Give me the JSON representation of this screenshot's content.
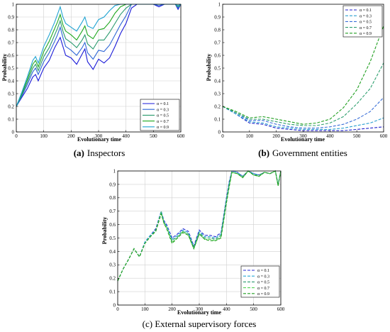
{
  "chart_data": [
    {
      "type": "line",
      "panel": "a",
      "caption_letter": "(a)",
      "caption_text": "Inspectors",
      "xlabel": "Evolutionary time",
      "ylabel": "Probability",
      "xlim": [
        0,
        600
      ],
      "ylim": [
        0,
        1
      ],
      "xticks": [
        "0",
        "100",
        "200",
        "300",
        "400",
        "500",
        "600"
      ],
      "yticks": [
        "0",
        "0.1",
        "0.2",
        "0.3",
        "0.4",
        "0.5",
        "0.6",
        "0.7",
        "0.8",
        "0.9",
        "1"
      ],
      "grid": true,
      "legend_position": "bottom-right",
      "series": [
        {
          "name": "α = 0.1",
          "color": "#1a1ad8",
          "dash": "solid",
          "x": [
            0,
            20,
            40,
            60,
            70,
            80,
            100,
            120,
            140,
            150,
            160,
            170,
            180,
            200,
            220,
            240,
            250,
            260,
            280,
            300,
            320,
            340,
            360,
            380,
            400,
            420,
            440,
            460,
            480,
            500,
            520,
            540,
            560,
            580,
            590,
            600
          ],
          "y": [
            0.2,
            0.27,
            0.34,
            0.43,
            0.45,
            0.4,
            0.5,
            0.56,
            0.66,
            0.7,
            0.74,
            0.67,
            0.6,
            0.58,
            0.53,
            0.61,
            0.65,
            0.55,
            0.49,
            0.57,
            0.54,
            0.58,
            0.67,
            0.77,
            0.85,
            0.97,
            1.0,
            1.0,
            1.0,
            1.0,
            0.98,
            1.0,
            1.0,
            1.0,
            0.96,
            1.0
          ]
        },
        {
          "name": "α = 0.3",
          "color": "#2e66d6",
          "dash": "solid",
          "x": [
            0,
            20,
            40,
            60,
            70,
            80,
            100,
            120,
            140,
            150,
            160,
            170,
            180,
            200,
            220,
            240,
            250,
            260,
            280,
            300,
            320,
            340,
            360,
            380,
            400,
            420,
            440,
            460,
            480,
            500,
            520,
            540,
            560,
            580,
            590,
            600
          ],
          "y": [
            0.2,
            0.28,
            0.37,
            0.47,
            0.5,
            0.45,
            0.55,
            0.62,
            0.71,
            0.76,
            0.82,
            0.74,
            0.67,
            0.64,
            0.6,
            0.66,
            0.7,
            0.62,
            0.57,
            0.64,
            0.63,
            0.68,
            0.76,
            0.84,
            0.91,
            1.0,
            1.0,
            1.0,
            1.0,
            1.0,
            0.99,
            1.0,
            1.0,
            1.0,
            0.97,
            1.0
          ]
        },
        {
          "name": "α = 0.5",
          "color": "#2a9a6e",
          "dash": "solid",
          "x": [
            0,
            20,
            40,
            60,
            70,
            80,
            100,
            120,
            140,
            150,
            160,
            170,
            180,
            200,
            220,
            240,
            250,
            260,
            280,
            300,
            320,
            340,
            360,
            380,
            400,
            420,
            440,
            460,
            480,
            500,
            520,
            540,
            560,
            580,
            590,
            600
          ],
          "y": [
            0.2,
            0.29,
            0.39,
            0.5,
            0.53,
            0.48,
            0.59,
            0.66,
            0.76,
            0.81,
            0.87,
            0.79,
            0.73,
            0.7,
            0.66,
            0.72,
            0.76,
            0.69,
            0.65,
            0.72,
            0.72,
            0.78,
            0.85,
            0.92,
            0.97,
            1.0,
            1.0,
            1.0,
            1.0,
            1.0,
            1.0,
            1.0,
            1.0,
            1.0,
            0.98,
            1.0
          ]
        },
        {
          "name": "α = 0.7",
          "color": "#1fa81f",
          "dash": "solid",
          "x": [
            0,
            20,
            40,
            60,
            70,
            80,
            100,
            120,
            140,
            150,
            160,
            170,
            180,
            200,
            220,
            240,
            250,
            260,
            280,
            300,
            320,
            340,
            360,
            380,
            400,
            420,
            440,
            460,
            480,
            500,
            520,
            540,
            560,
            580,
            590,
            600
          ],
          "y": [
            0.2,
            0.3,
            0.41,
            0.53,
            0.56,
            0.51,
            0.63,
            0.71,
            0.81,
            0.86,
            0.92,
            0.84,
            0.79,
            0.76,
            0.72,
            0.79,
            0.83,
            0.76,
            0.73,
            0.8,
            0.81,
            0.86,
            0.93,
            0.98,
            1.0,
            1.0,
            1.0,
            1.0,
            1.0,
            1.0,
            1.0,
            1.0,
            1.0,
            1.0,
            0.99,
            1.0
          ]
        },
        {
          "name": "α = 0.9",
          "color": "#1fa3d2",
          "dash": "solid",
          "x": [
            0,
            20,
            40,
            60,
            70,
            80,
            100,
            120,
            140,
            150,
            160,
            170,
            180,
            200,
            220,
            240,
            250,
            260,
            280,
            300,
            320,
            340,
            360,
            380,
            400,
            420,
            440,
            460,
            480,
            500,
            520,
            540,
            560,
            580,
            590,
            600
          ],
          "y": [
            0.2,
            0.31,
            0.43,
            0.56,
            0.59,
            0.54,
            0.67,
            0.76,
            0.86,
            0.92,
            0.98,
            0.9,
            0.85,
            0.82,
            0.79,
            0.86,
            0.9,
            0.83,
            0.81,
            0.88,
            0.9,
            0.95,
            0.99,
            1.0,
            1.0,
            1.0,
            1.0,
            1.0,
            1.0,
            1.0,
            1.0,
            1.0,
            1.0,
            1.0,
            0.99,
            1.0
          ]
        }
      ]
    },
    {
      "type": "line",
      "panel": "b",
      "caption_letter": "(b)",
      "caption_text": "Government entities",
      "xlabel": "Evolutionary time",
      "ylabel": "Probability",
      "xlim": [
        0,
        600
      ],
      "ylim": [
        0,
        1
      ],
      "xticks": [
        "0",
        "100",
        "200",
        "300",
        "400",
        "500",
        "600"
      ],
      "yticks": [
        "0",
        "0.1",
        "0.2",
        "0.3",
        "0.4",
        "0.5",
        "0.6",
        "0.7",
        "0.8",
        "0.9",
        "1"
      ],
      "grid": false,
      "legend_position": "top-right",
      "series": [
        {
          "name": "α = 0.1",
          "color": "#2222cc",
          "dash": "4,2",
          "x": [
            0,
            50,
            100,
            150,
            200,
            250,
            300,
            350,
            400,
            450,
            500,
            550,
            600
          ],
          "y": [
            0.2,
            0.14,
            0.07,
            0.06,
            0.03,
            0.02,
            0.01,
            0.01,
            0.01,
            0.01,
            0.02,
            0.03,
            0.04
          ]
        },
        {
          "name": "α = 0.3",
          "color": "#2aa0d0",
          "dash": "4,2",
          "x": [
            0,
            50,
            100,
            150,
            200,
            250,
            300,
            350,
            400,
            450,
            500,
            550,
            600
          ],
          "y": [
            0.2,
            0.14,
            0.08,
            0.07,
            0.04,
            0.03,
            0.02,
            0.02,
            0.02,
            0.03,
            0.05,
            0.07,
            0.11
          ]
        },
        {
          "name": "α = 0.5",
          "color": "#3a6fd8",
          "dash": "4,2",
          "x": [
            0,
            50,
            100,
            150,
            200,
            250,
            300,
            350,
            400,
            450,
            500,
            550,
            600
          ],
          "y": [
            0.2,
            0.15,
            0.09,
            0.09,
            0.06,
            0.04,
            0.03,
            0.03,
            0.04,
            0.06,
            0.1,
            0.16,
            0.27
          ]
        },
        {
          "name": "α = 0.7",
          "color": "#30a070",
          "dash": "4,2",
          "x": [
            0,
            50,
            100,
            150,
            200,
            250,
            300,
            350,
            400,
            450,
            500,
            550,
            600
          ],
          "y": [
            0.2,
            0.15,
            0.1,
            0.1,
            0.08,
            0.06,
            0.05,
            0.05,
            0.07,
            0.12,
            0.22,
            0.34,
            0.54
          ]
        },
        {
          "name": "α = 0.9",
          "color": "#22a022",
          "dash": "4,2",
          "x": [
            0,
            50,
            100,
            150,
            200,
            250,
            300,
            350,
            400,
            450,
            500,
            550,
            600
          ],
          "y": [
            0.2,
            0.16,
            0.11,
            0.12,
            0.1,
            0.08,
            0.06,
            0.07,
            0.1,
            0.19,
            0.33,
            0.55,
            0.83
          ]
        }
      ]
    },
    {
      "type": "line",
      "panel": "c",
      "caption_letter": "",
      "caption_text": "(c) External supervisory forces",
      "xlabel": "Evolutionary time",
      "ylabel": "Probability",
      "xlim": [
        0,
        600
      ],
      "ylim": [
        0,
        1
      ],
      "xticks": [
        "0",
        "100",
        "200",
        "300",
        "400",
        "500",
        "600"
      ],
      "yticks": [
        "0",
        "0.1",
        "0.2",
        "0.3",
        "0.4",
        "0.5",
        "0.6",
        "0.7",
        "0.8",
        "0.9",
        "1"
      ],
      "grid": true,
      "legend_position": "bottom-right",
      "series": [
        {
          "name": "α = 0.1",
          "color": "#2a2ad6",
          "dash": "4,2",
          "x": [
            0,
            20,
            40,
            60,
            80,
            100,
            120,
            140,
            160,
            170,
            180,
            200,
            220,
            240,
            260,
            280,
            300,
            320,
            340,
            360,
            380,
            400,
            410,
            420,
            440,
            460,
            480,
            500,
            520,
            540,
            560,
            580,
            590,
            600
          ],
          "y": [
            0.18,
            0.27,
            0.34,
            0.42,
            0.36,
            0.47,
            0.52,
            0.57,
            0.7,
            0.63,
            0.6,
            0.5,
            0.53,
            0.57,
            0.55,
            0.44,
            0.56,
            0.52,
            0.52,
            0.51,
            0.54,
            0.8,
            0.92,
            1.0,
            0.99,
            0.96,
            1.0,
            0.98,
            0.97,
            0.99,
            0.98,
            1.0,
            0.9,
            1.0
          ]
        },
        {
          "name": "α = 0.3",
          "color": "#2aa8d6",
          "dash": "4,2",
          "x": [
            0,
            20,
            40,
            60,
            80,
            100,
            120,
            140,
            160,
            170,
            180,
            200,
            220,
            240,
            260,
            280,
            300,
            320,
            340,
            360,
            380,
            400,
            410,
            420,
            440,
            460,
            480,
            500,
            520,
            540,
            560,
            580,
            590,
            600
          ],
          "y": [
            0.18,
            0.27,
            0.34,
            0.42,
            0.36,
            0.47,
            0.52,
            0.56,
            0.7,
            0.62,
            0.59,
            0.49,
            0.52,
            0.56,
            0.54,
            0.43,
            0.55,
            0.51,
            0.51,
            0.5,
            0.53,
            0.79,
            0.91,
            1.0,
            0.99,
            0.96,
            1.0,
            0.98,
            0.97,
            0.99,
            0.98,
            1.0,
            0.9,
            1.0
          ]
        },
        {
          "name": "α = 0.5",
          "color": "#2e9a70",
          "dash": "4,2",
          "x": [
            0,
            20,
            40,
            60,
            80,
            100,
            120,
            140,
            160,
            170,
            180,
            200,
            220,
            240,
            260,
            280,
            300,
            320,
            340,
            360,
            380,
            400,
            410,
            420,
            440,
            460,
            480,
            500,
            520,
            540,
            560,
            580,
            590,
            600
          ],
          "y": [
            0.18,
            0.27,
            0.34,
            0.42,
            0.36,
            0.46,
            0.51,
            0.56,
            0.69,
            0.62,
            0.58,
            0.48,
            0.51,
            0.55,
            0.53,
            0.43,
            0.54,
            0.5,
            0.5,
            0.49,
            0.52,
            0.78,
            0.9,
            0.99,
            0.98,
            0.96,
            1.0,
            0.97,
            0.97,
            0.99,
            0.98,
            1.0,
            0.89,
            1.0
          ]
        },
        {
          "name": "α = 0.7",
          "color": "#55d455",
          "dash": "4,2",
          "x": [
            0,
            20,
            40,
            60,
            80,
            100,
            120,
            140,
            160,
            170,
            180,
            200,
            220,
            240,
            260,
            280,
            300,
            320,
            340,
            360,
            380,
            400,
            410,
            420,
            440,
            460,
            480,
            500,
            520,
            540,
            560,
            580,
            590,
            600
          ],
          "y": [
            0.18,
            0.27,
            0.34,
            0.42,
            0.36,
            0.46,
            0.51,
            0.55,
            0.69,
            0.61,
            0.58,
            0.47,
            0.5,
            0.55,
            0.52,
            0.42,
            0.53,
            0.49,
            0.49,
            0.48,
            0.51,
            0.77,
            0.89,
            0.99,
            0.98,
            0.95,
            1.0,
            0.97,
            0.96,
            0.99,
            0.98,
            1.0,
            0.89,
            1.0
          ]
        },
        {
          "name": "α = 0.9",
          "color": "#22a022",
          "dash": "4,2",
          "x": [
            0,
            20,
            40,
            60,
            80,
            100,
            120,
            140,
            160,
            170,
            180,
            200,
            220,
            240,
            260,
            280,
            300,
            320,
            340,
            360,
            380,
            400,
            410,
            420,
            440,
            460,
            480,
            500,
            520,
            540,
            560,
            580,
            590,
            600
          ],
          "y": [
            0.18,
            0.27,
            0.34,
            0.42,
            0.36,
            0.46,
            0.51,
            0.55,
            0.68,
            0.61,
            0.57,
            0.46,
            0.5,
            0.54,
            0.52,
            0.42,
            0.53,
            0.49,
            0.48,
            0.48,
            0.5,
            0.76,
            0.88,
            0.99,
            0.98,
            0.95,
            1.0,
            0.97,
            0.96,
            0.99,
            0.98,
            1.0,
            0.89,
            1.0
          ]
        }
      ]
    }
  ]
}
